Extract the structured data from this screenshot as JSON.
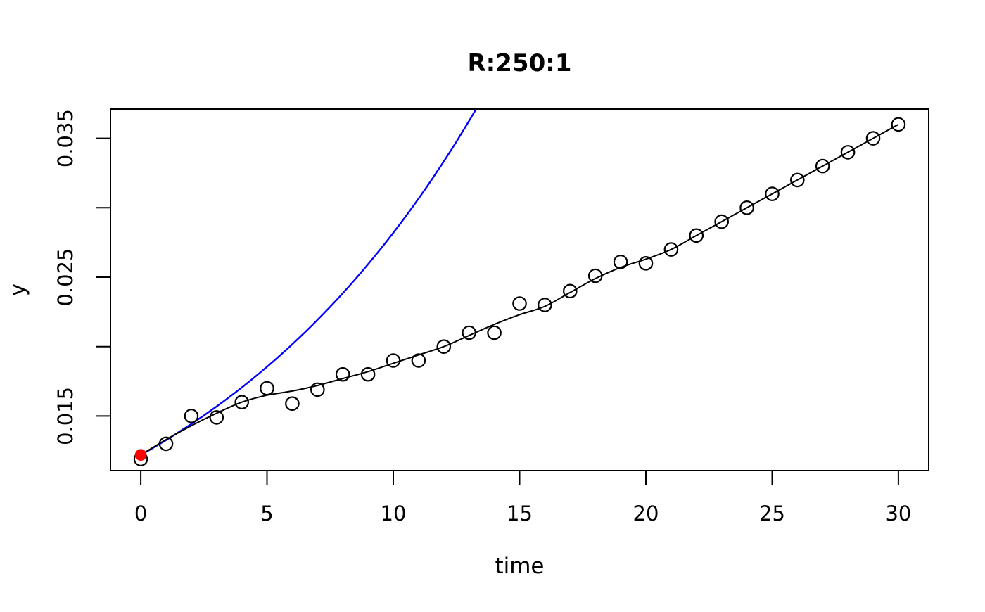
{
  "figure": {
    "background": "#FFFFFF"
  },
  "colors": {
    "axis": "#000000",
    "observations": "#000000",
    "fitted_line": "#000000",
    "model_curve": "#0000FF",
    "initial_point": "#FF0000"
  },
  "chart_data": {
    "type": "scatter",
    "title": "R:250:1",
    "xlabel": "time",
    "ylabel": "y",
    "xlim": [
      -1.2,
      31.2
    ],
    "ylim": [
      0.01107,
      0.03711
    ],
    "grid": false,
    "legend": null,
    "x_ticks": {
      "values": [
        0,
        5,
        10,
        15,
        20,
        25,
        30
      ],
      "labels": [
        "0",
        "5",
        "10",
        "15",
        "20",
        "25",
        "30"
      ]
    },
    "y_ticks": {
      "values": [
        0.015,
        0.02,
        0.025,
        0.03,
        0.035
      ],
      "labels": [
        "0.015",
        "",
        "0.025",
        "",
        "0.035"
      ]
    },
    "series": [
      {
        "name": "observations",
        "type": "scatter",
        "marker": "open-circle",
        "color": "#000000",
        "x": [
          0,
          1,
          2,
          3,
          4,
          5,
          6,
          7,
          8,
          9,
          10,
          11,
          12,
          13,
          14,
          15,
          16,
          17,
          18,
          19,
          20,
          21,
          22,
          23,
          24,
          25,
          26,
          27,
          28,
          29,
          30
        ],
        "y": [
          0.0119,
          0.013,
          0.015,
          0.0149,
          0.016,
          0.017,
          0.0159,
          0.0169,
          0.018,
          0.018,
          0.019,
          0.019,
          0.02,
          0.021,
          0.021,
          0.0231,
          0.023,
          0.024,
          0.0251,
          0.0261,
          0.026,
          0.027,
          0.028,
          0.029,
          0.03,
          0.031,
          0.032,
          0.033,
          0.034,
          0.035,
          0.036
        ]
      },
      {
        "name": "fitted-line",
        "type": "line",
        "color": "#000000",
        "x": [
          0,
          1,
          2,
          3,
          4,
          5,
          6,
          7,
          8,
          9,
          10,
          11,
          12,
          13,
          14,
          15,
          16,
          17,
          18,
          19,
          20,
          21,
          22,
          23,
          24,
          25,
          26,
          27,
          28,
          29,
          30
        ],
        "y": [
          0.0122,
          0.0133,
          0.0143,
          0.0152,
          0.016,
          0.0165,
          0.0168,
          0.0172,
          0.0177,
          0.0182,
          0.0188,
          0.0194,
          0.02,
          0.0208,
          0.0216,
          0.0223,
          0.0229,
          0.0239,
          0.0249,
          0.0257,
          0.0263,
          0.027,
          0.028,
          0.029,
          0.03,
          0.031,
          0.032,
          0.033,
          0.034,
          0.035,
          0.036
        ]
      },
      {
        "name": "exponential-model",
        "type": "line",
        "color": "#0000FF",
        "x": [
          0,
          0.5,
          1,
          1.5,
          2,
          2.5,
          3,
          3.5,
          4,
          4.5,
          5,
          5.5,
          6,
          6.5,
          7,
          7.5,
          8,
          8.5,
          9,
          9.5,
          10,
          10.5,
          11,
          11.5,
          12,
          12.5,
          13,
          13.27
        ],
        "y": [
          0.0122,
          0.012722,
          0.013266,
          0.013834,
          0.014426,
          0.015043,
          0.015686,
          0.016357,
          0.017057,
          0.017787,
          0.018548,
          0.019341,
          0.020169,
          0.021031,
          0.021931,
          0.022869,
          0.023848,
          0.024868,
          0.025932,
          0.027041,
          0.028198,
          0.029404,
          0.030662,
          0.031974,
          0.033342,
          0.034768,
          0.036255,
          0.037083
        ]
      },
      {
        "name": "initial-point",
        "type": "scatter",
        "marker": "filled-circle",
        "color": "#FF0000",
        "x": [
          0
        ],
        "y": [
          0.0122
        ]
      }
    ]
  }
}
